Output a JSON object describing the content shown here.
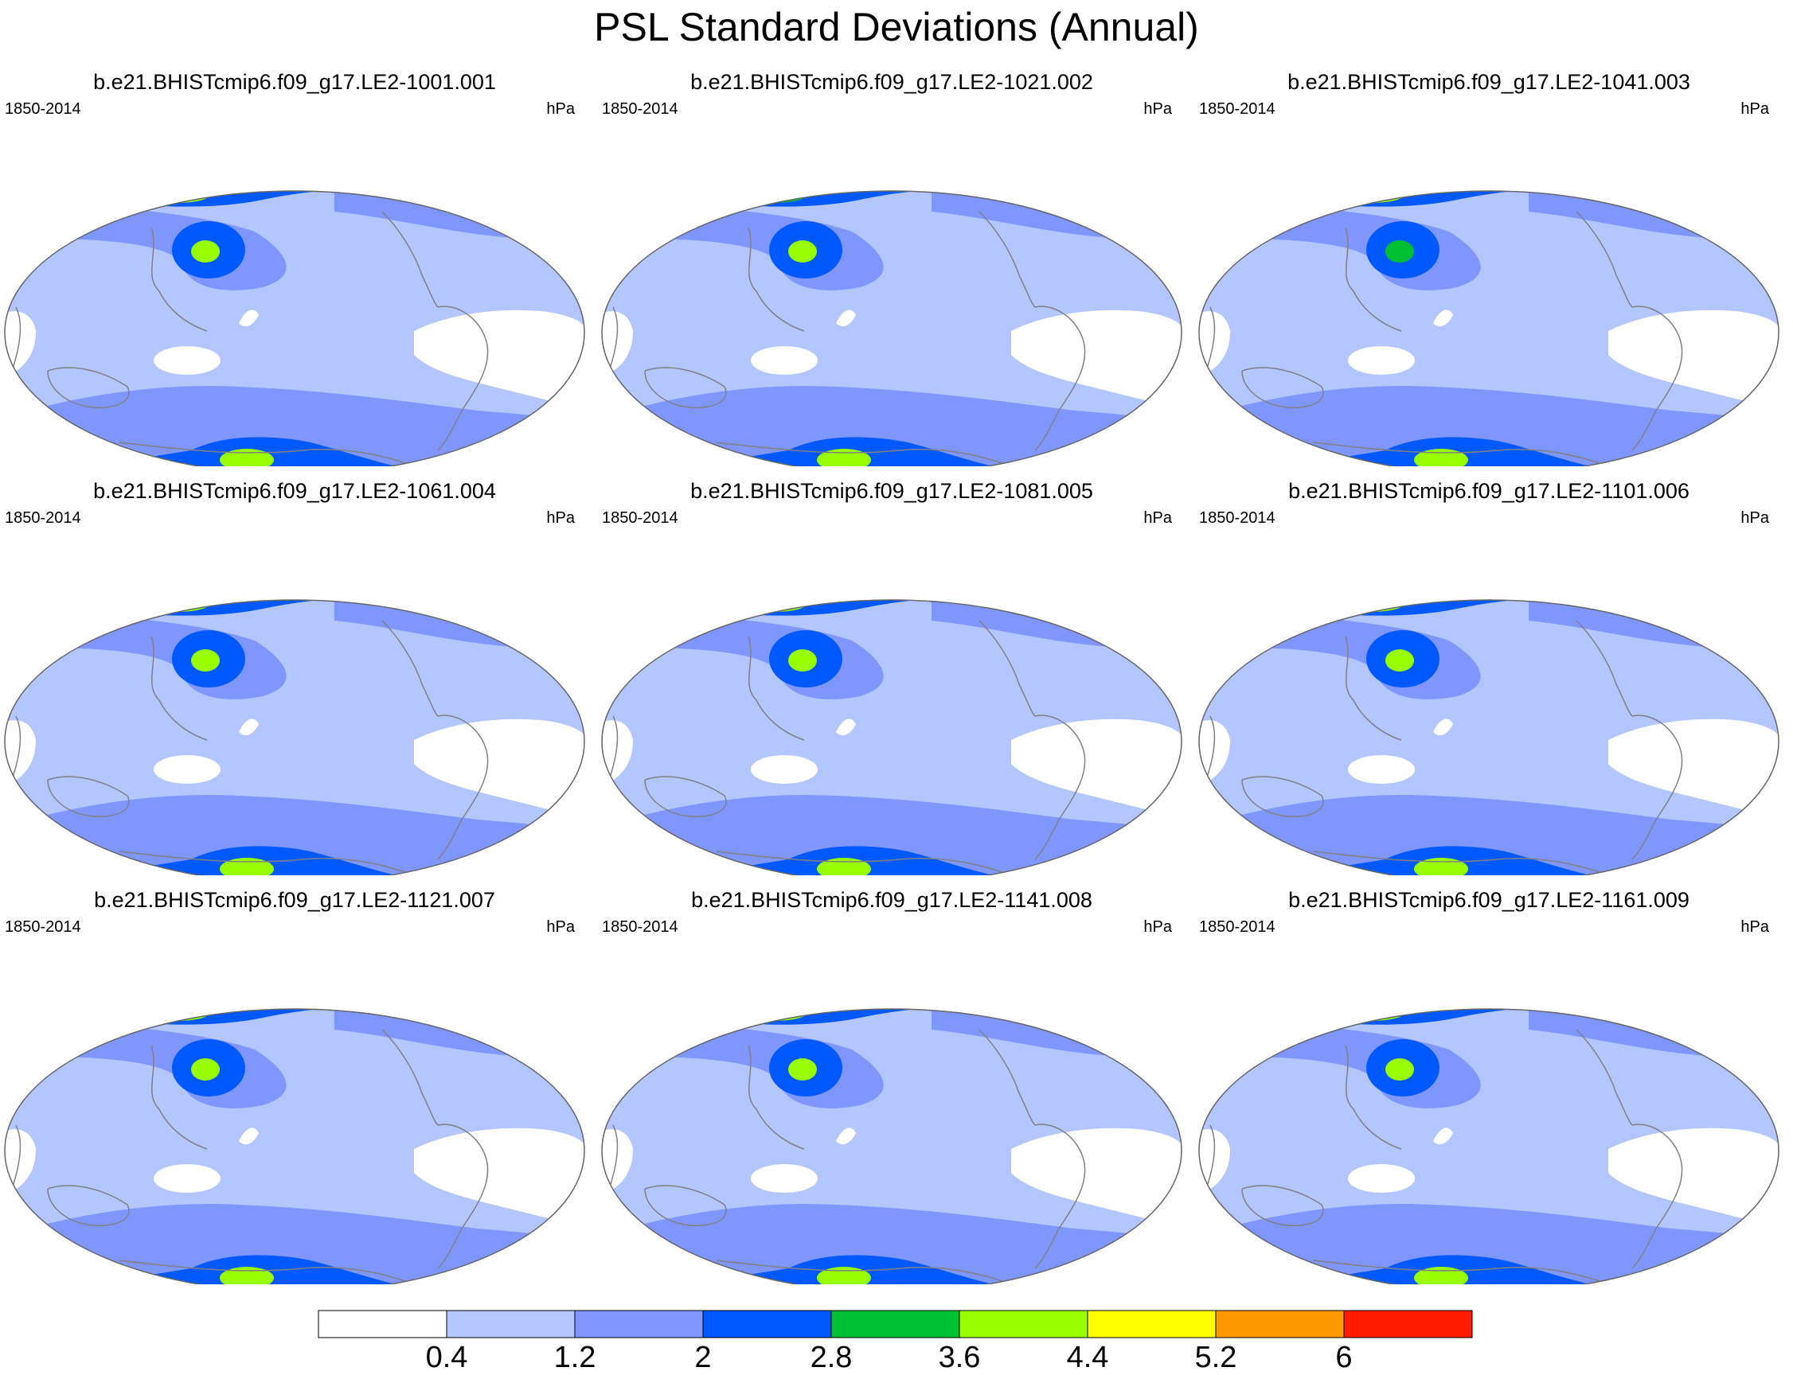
{
  "title": "PSL Standard Deviations (Annual)",
  "panel_common": {
    "period": "1850-2014",
    "units": "hPa"
  },
  "chart_data": {
    "type": "filled-contour-map-grid",
    "title": "PSL Standard Deviations (Annual)",
    "variable": "PSL standard deviation",
    "units": "hPa",
    "period": "1850-2014",
    "layout": "3x3",
    "panels": [
      {
        "name": "b.e21.BHISTcmip6.f09_g17.LE2-1001.001",
        "npac_max": 3.6,
        "sh_max": 3.6,
        "arctic_max": 3.6
      },
      {
        "name": "b.e21.BHISTcmip6.f09_g17.LE2-1021.002",
        "npac_max": 3.6,
        "sh_max": 3.6,
        "arctic_max": 2.8
      },
      {
        "name": "b.e21.BHISTcmip6.f09_g17.LE2-1041.003",
        "npac_max": 2.8,
        "sh_max": 3.6,
        "arctic_max": 3.6
      },
      {
        "name": "b.e21.BHISTcmip6.f09_g17.LE2-1061.004",
        "npac_max": 3.6,
        "sh_max": 3.6,
        "arctic_max": 3.6
      },
      {
        "name": "b.e21.BHISTcmip6.f09_g17.LE2-1081.005",
        "npac_max": 3.6,
        "sh_max": 3.6,
        "arctic_max": 3.6
      },
      {
        "name": "b.e21.BHISTcmip6.f09_g17.LE2-1101.006",
        "npac_max": 3.6,
        "sh_max": 3.6,
        "arctic_max": 3.6
      },
      {
        "name": "b.e21.BHISTcmip6.f09_g17.LE2-1121.007",
        "npac_max": 3.6,
        "sh_max": 3.6,
        "arctic_max": 3.6
      },
      {
        "name": "b.e21.BHISTcmip6.f09_g17.LE2-1141.008",
        "npac_max": 3.6,
        "sh_max": 3.6,
        "arctic_max": 3.6
      },
      {
        "name": "b.e21.BHISTcmip6.f09_g17.LE2-1161.009",
        "npac_max": 3.6,
        "sh_max": 3.6,
        "arctic_max": 3.6
      }
    ],
    "colorbar": {
      "levels": [
        "0.4",
        "1.2",
        "2",
        "2.8",
        "3.6",
        "4.4",
        "5.2",
        "6"
      ],
      "colors": [
        "#ffffff",
        "#b3c6ff",
        "#7f96ff",
        "#0059ff",
        "#00c132",
        "#99ff00",
        "#ffff00",
        "#ff9900",
        "#ff1c00"
      ],
      "orientation": "horizontal"
    }
  }
}
